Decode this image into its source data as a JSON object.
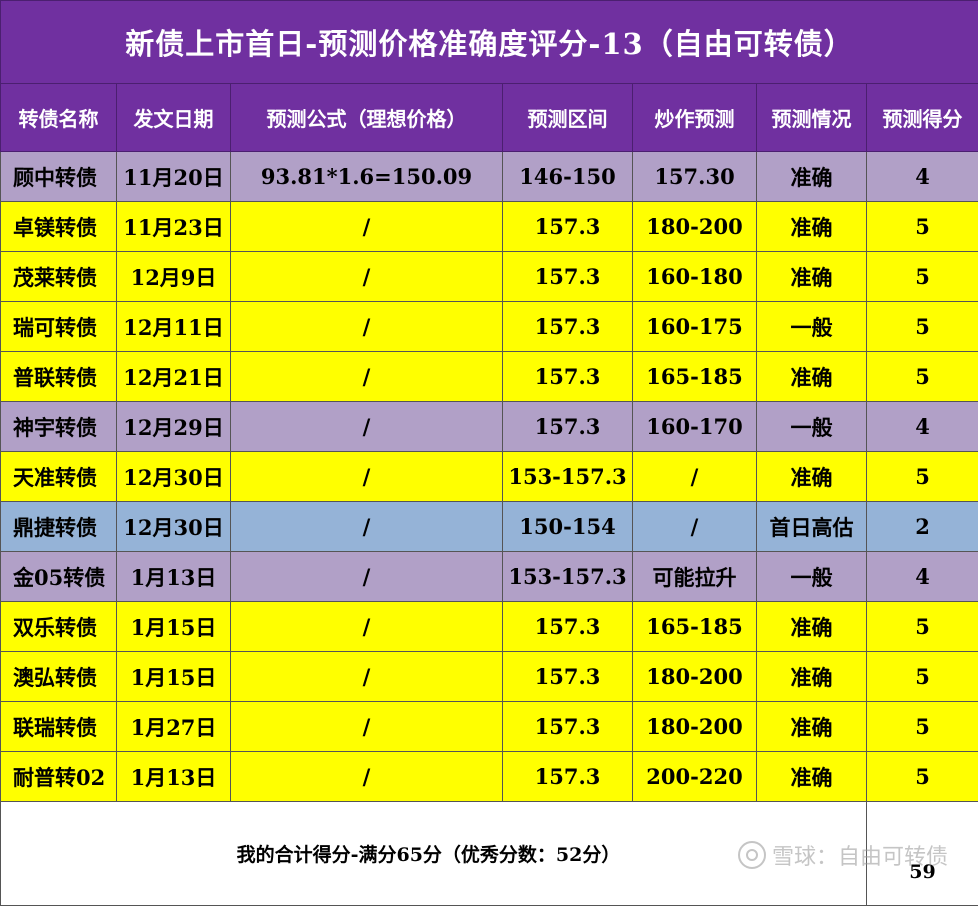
{
  "title": "新债上市首日-预测价格准确度评分-13（自由可转债）",
  "headers": [
    "转债名称",
    "发文日期",
    "预测公式（理想价格）",
    "预测区间",
    "炒作预测",
    "预测情况",
    "预测得分"
  ],
  "rows": [
    {
      "name": "顾中转债",
      "date": "11月20日",
      "formula": "93.81*1.6=150.09",
      "range": "146-150",
      "hype": "157.30",
      "status": "准确",
      "score": "4",
      "color": "lavender"
    },
    {
      "name": "卓镁转债",
      "date": "11月23日",
      "formula": "/",
      "range": "157.3",
      "hype": "180-200",
      "status": "准确",
      "score": "5",
      "color": "yellow"
    },
    {
      "name": "茂莱转债",
      "date": "12月9日",
      "formula": "/",
      "range": "157.3",
      "hype": "160-180",
      "status": "准确",
      "score": "5",
      "color": "yellow"
    },
    {
      "name": "瑞可转债",
      "date": "12月11日",
      "formula": "/",
      "range": "157.3",
      "hype": "160-175",
      "status": "一般",
      "score": "5",
      "color": "yellow"
    },
    {
      "name": "普联转债",
      "date": "12月21日",
      "formula": "/",
      "range": "157.3",
      "hype": "165-185",
      "status": "准确",
      "score": "5",
      "color": "yellow"
    },
    {
      "name": "神宇转债",
      "date": "12月29日",
      "formula": "/",
      "range": "157.3",
      "hype": "160-170",
      "status": "一般",
      "score": "4",
      "color": "lavender"
    },
    {
      "name": "天准转债",
      "date": "12月30日",
      "formula": "/",
      "range": "153-157.3",
      "hype": "/",
      "status": "准确",
      "score": "5",
      "color": "yellow"
    },
    {
      "name": "鼎捷转债",
      "date": "12月30日",
      "formula": "/",
      "range": "150-154",
      "hype": "/",
      "status": "首日高估",
      "score": "2",
      "color": "blue"
    },
    {
      "name": "金05转债",
      "date": "1月13日",
      "formula": "/",
      "range": "153-157.3",
      "hype": "可能拉升",
      "status": "一般",
      "score": "4",
      "color": "lavender"
    },
    {
      "name": "双乐转债",
      "date": "1月15日",
      "formula": "/",
      "range": "157.3",
      "hype": "165-185",
      "status": "准确",
      "score": "5",
      "color": "yellow"
    },
    {
      "name": "澳弘转债",
      "date": "1月15日",
      "formula": "/",
      "range": "157.3",
      "hype": "180-200",
      "status": "准确",
      "score": "5",
      "color": "yellow"
    },
    {
      "name": "联瑞转债",
      "date": "1月27日",
      "formula": "/",
      "range": "157.3",
      "hype": "180-200",
      "status": "准确",
      "score": "5",
      "color": "yellow"
    },
    {
      "name": "耐普转02",
      "date": "1月13日",
      "formula": "/",
      "range": "157.3",
      "hype": "200-220",
      "status": "准确",
      "score": "5",
      "color": "yellow"
    }
  ],
  "total": {
    "label": "我的合计得分-满分65分（优秀分数：52分）",
    "score": "59"
  },
  "watermark": {
    "text": "雪球：自由可转债",
    "icon": "snowball-logo-icon"
  },
  "colors": {
    "title_bg": "#7030a0",
    "yellow": "#ffff00",
    "lavender": "#b1a0c7",
    "blue": "#95b3d7"
  }
}
